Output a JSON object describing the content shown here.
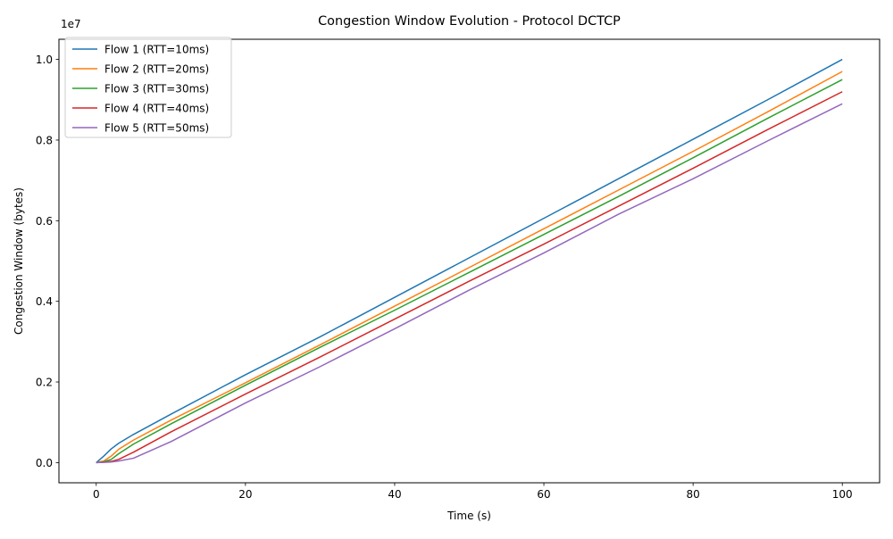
{
  "chart_data": {
    "type": "line",
    "title": "Congestion Window Evolution - Protocol DCTCP",
    "xlabel": "Time (s)",
    "ylabel": "Congestion Window (bytes)",
    "y_offset_label": "1e7",
    "xlim": [
      -5,
      105
    ],
    "ylim": [
      -0.05,
      1.05
    ],
    "y_scale_factor": 10000000,
    "x_ticks": [
      {
        "value": 0,
        "label": "0"
      },
      {
        "value": 20,
        "label": "20"
      },
      {
        "value": 40,
        "label": "40"
      },
      {
        "value": 60,
        "label": "60"
      },
      {
        "value": 80,
        "label": "80"
      },
      {
        "value": 100,
        "label": "100"
      }
    ],
    "y_ticks": [
      {
        "value": 0.0,
        "label": "0.0"
      },
      {
        "value": 0.2,
        "label": "0.2"
      },
      {
        "value": 0.4,
        "label": "0.4"
      },
      {
        "value": 0.6,
        "label": "0.6"
      },
      {
        "value": 0.8,
        "label": "0.8"
      },
      {
        "value": 1.0,
        "label": "1.0"
      }
    ],
    "grid": false,
    "legend_position": "top-left",
    "series": [
      {
        "name": "Flow 1 (RTT=10ms)",
        "color": "#1f77b4",
        "x": [
          0,
          1,
          2,
          3,
          5,
          10,
          20,
          30,
          40,
          50,
          60,
          70,
          80,
          90,
          100
        ],
        "y": [
          0,
          160000,
          340000,
          480000,
          700000,
          1200000,
          2180000,
          3120000,
          4100000,
          5080000,
          6060000,
          7040000,
          8020000,
          9000000,
          10000000
        ]
      },
      {
        "name": "Flow 2 (RTT=20ms)",
        "color": "#ff7f0e",
        "x": [
          0,
          1,
          2,
          3,
          5,
          10,
          20,
          30,
          40,
          50,
          60,
          70,
          80,
          90,
          100
        ],
        "y": [
          0,
          40000,
          160000,
          330000,
          560000,
          1050000,
          1980000,
          2920000,
          3880000,
          4840000,
          5800000,
          6760000,
          7720000,
          8700000,
          9700000
        ]
      },
      {
        "name": "Flow 3 (RTT=30ms)",
        "color": "#2ca02c",
        "x": [
          0,
          1,
          2,
          3,
          5,
          10,
          20,
          30,
          40,
          50,
          60,
          70,
          80,
          90,
          100
        ],
        "y": [
          0,
          20000,
          80000,
          220000,
          460000,
          960000,
          1920000,
          2860000,
          3780000,
          4720000,
          5660000,
          6600000,
          7560000,
          8540000,
          9500000
        ]
      },
      {
        "name": "Flow 4 (RTT=40ms)",
        "color": "#d62728",
        "x": [
          0,
          1,
          2,
          3,
          5,
          10,
          20,
          30,
          40,
          50,
          60,
          70,
          80,
          90,
          100
        ],
        "y": [
          0,
          10000,
          30000,
          80000,
          260000,
          760000,
          1700000,
          2620000,
          3560000,
          4500000,
          5420000,
          6360000,
          7300000,
          8260000,
          9200000
        ]
      },
      {
        "name": "Flow 5 (RTT=50ms)",
        "color": "#9467bd",
        "x": [
          0,
          1,
          2,
          3,
          5,
          10,
          20,
          30,
          40,
          50,
          60,
          70,
          80,
          90,
          100
        ],
        "y": [
          0,
          5000,
          15000,
          40000,
          110000,
          520000,
          1480000,
          2380000,
          3320000,
          4280000,
          5200000,
          6160000,
          7040000,
          7980000,
          8900000
        ]
      }
    ]
  }
}
